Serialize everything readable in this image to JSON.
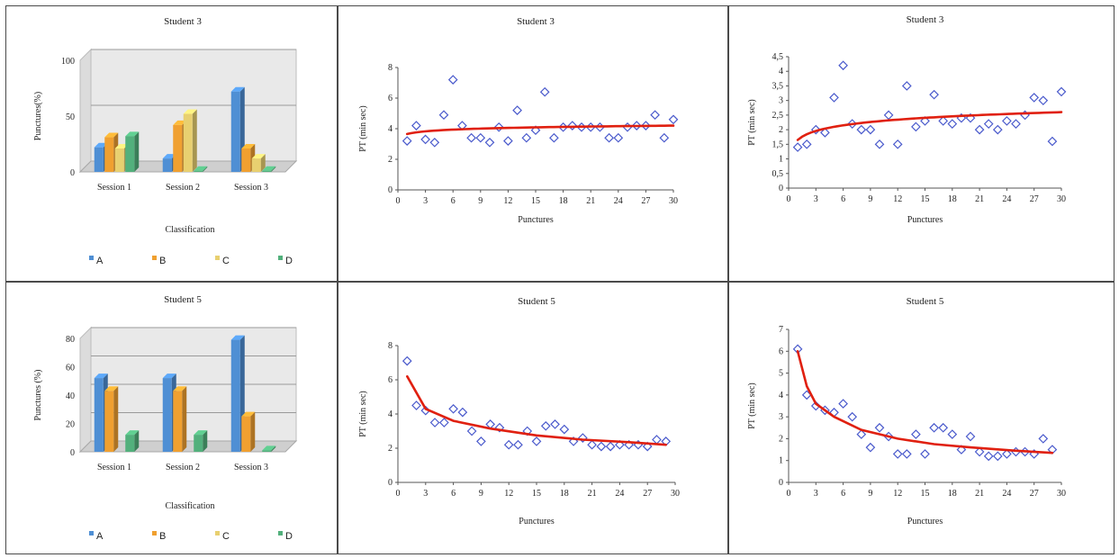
{
  "colors": {
    "A": "#4f8fd4",
    "B": "#f0a030",
    "C": "#e8d070",
    "D": "#52b07c",
    "marker": "#4a5acc",
    "trend": "#e02010"
  },
  "chart_data": [
    {
      "type": "bar",
      "title": "Student 3",
      "categories": [
        "Session 1",
        "Session 2",
        "Session 3"
      ],
      "series": [
        {
          "name": "A",
          "values": [
            22,
            12,
            72
          ]
        },
        {
          "name": "B",
          "values": [
            31,
            42,
            21
          ]
        },
        {
          "name": "C",
          "values": [
            21,
            52,
            12
          ]
        },
        {
          "name": "D",
          "values": [
            32,
            1,
            1
          ]
        }
      ],
      "xlabel": "Classification",
      "ylabel": "Punctures(%)",
      "ylim": [
        0,
        100
      ],
      "yticks": [
        "0",
        "50",
        "100"
      ],
      "legend": "bottom"
    },
    {
      "type": "scatter",
      "title": "Student 3",
      "xlabel": "Punctures",
      "ylabel": "PT (min sec)",
      "xlim": [
        0,
        30
      ],
      "ylim": [
        0,
        8
      ],
      "xticks": [
        "0",
        "3",
        "6",
        "9",
        "12",
        "15",
        "18",
        "21",
        "24",
        "27",
        "30"
      ],
      "yticks": [
        "0",
        "2",
        "4",
        "6",
        "8"
      ],
      "x": [
        1,
        2,
        3,
        4,
        5,
        6,
        7,
        8,
        9,
        10,
        11,
        12,
        13,
        14,
        15,
        16,
        17,
        18,
        19,
        20,
        21,
        22,
        23,
        24,
        25,
        26,
        27,
        28,
        29,
        30
      ],
      "y": [
        3.2,
        4.2,
        3.3,
        3.1,
        4.9,
        7.2,
        4.2,
        3.4,
        3.4,
        3.1,
        4.1,
        3.2,
        5.2,
        3.4,
        3.9,
        6.4,
        3.4,
        4.1,
        4.2,
        4.1,
        4.1,
        4.1,
        3.4,
        3.4,
        4.1,
        4.2,
        4.2,
        4.9,
        3.4,
        4.6
      ],
      "trend": "logarithmic",
      "trend_points": [
        [
          1,
          3.65
        ],
        [
          30,
          4.2
        ]
      ]
    },
    {
      "type": "scatter",
      "title": "Student 3",
      "xlabel": "Punctures",
      "ylabel": "PT (min sec)",
      "xlim": [
        0,
        30
      ],
      "ylim": [
        0,
        4.5
      ],
      "xticks": [
        "0",
        "3",
        "6",
        "9",
        "12",
        "15",
        "18",
        "21",
        "24",
        "27",
        "30"
      ],
      "yticks": [
        "0",
        "0,5",
        "1",
        "1,5",
        "2",
        "2,5",
        "3",
        "3,5",
        "4",
        "4,5"
      ],
      "x": [
        1,
        2,
        3,
        4,
        5,
        6,
        7,
        8,
        9,
        10,
        11,
        12,
        13,
        14,
        15,
        16,
        17,
        18,
        19,
        20,
        21,
        22,
        23,
        24,
        25,
        26,
        27,
        28,
        29,
        30
      ],
      "y": [
        1.4,
        1.5,
        2.0,
        1.9,
        3.1,
        4.2,
        2.2,
        2.0,
        2.0,
        1.5,
        2.5,
        1.5,
        3.5,
        2.1,
        2.3,
        3.2,
        2.3,
        2.2,
        2.4,
        2.4,
        2.0,
        2.2,
        2.0,
        2.3,
        2.2,
        2.5,
        3.1,
        3.0,
        1.6,
        3.3
      ],
      "trend": "logarithmic",
      "trend_points": [
        [
          1,
          1.65
        ],
        [
          30,
          2.6
        ]
      ]
    },
    {
      "type": "bar",
      "title": "Student 5",
      "categories": [
        "Session 1",
        "Session 2",
        "Session 3"
      ],
      "series": [
        {
          "name": "A",
          "values": [
            52,
            52,
            79
          ]
        },
        {
          "name": "B",
          "values": [
            43,
            43,
            25
          ]
        },
        {
          "name": "C",
          "values": [
            0,
            0,
            0
          ]
        },
        {
          "name": "D",
          "values": [
            12,
            12,
            1
          ]
        }
      ],
      "xlabel": "Classification",
      "ylabel": "Punctures (%)",
      "ylim": [
        0,
        80
      ],
      "yticks": [
        "0",
        "20",
        "40",
        "60",
        "80"
      ],
      "legend": "bottom"
    },
    {
      "type": "scatter",
      "title": "Student 5",
      "xlabel": "Punctures",
      "ylabel": "PT (min sec)",
      "xlim": [
        0,
        30
      ],
      "ylim": [
        0,
        8
      ],
      "xticks": [
        "0",
        "3",
        "6",
        "9",
        "12",
        "15",
        "18",
        "21",
        "24",
        "27",
        "30"
      ],
      "yticks": [
        "0",
        "2",
        "4",
        "6",
        "8"
      ],
      "x": [
        1,
        2,
        3,
        4,
        5,
        6,
        7,
        8,
        9,
        10,
        11,
        12,
        13,
        14,
        15,
        16,
        17,
        18,
        19,
        20,
        21,
        22,
        23,
        24,
        25,
        26,
        27,
        28,
        29
      ],
      "y": [
        7.1,
        4.5,
        4.2,
        3.5,
        3.5,
        4.3,
        4.1,
        3.0,
        2.4,
        3.4,
        3.2,
        2.2,
        2.2,
        3.0,
        2.4,
        3.3,
        3.4,
        3.1,
        2.4,
        2.6,
        2.2,
        2.1,
        2.1,
        2.2,
        2.2,
        2.2,
        2.1,
        2.5,
        2.4
      ],
      "trend": "power",
      "trend_points": [
        [
          1,
          6.2
        ],
        [
          3,
          4.3
        ],
        [
          6,
          3.6
        ],
        [
          10,
          3.15
        ],
        [
          15,
          2.75
        ],
        [
          20,
          2.5
        ],
        [
          25,
          2.35
        ],
        [
          29,
          2.2
        ]
      ]
    },
    {
      "type": "scatter",
      "title": "Student 5",
      "xlabel": "Punctures",
      "ylabel": "PT (min sec)",
      "xlim": [
        0,
        30
      ],
      "ylim": [
        0,
        7
      ],
      "xticks": [
        "0",
        "3",
        "6",
        "9",
        "12",
        "15",
        "18",
        "21",
        "24",
        "27",
        "30"
      ],
      "yticks": [
        "0",
        "1",
        "2",
        "3",
        "4",
        "5",
        "6",
        "7"
      ],
      "x": [
        1,
        2,
        3,
        4,
        5,
        6,
        7,
        8,
        9,
        10,
        11,
        12,
        13,
        14,
        15,
        16,
        17,
        18,
        19,
        20,
        21,
        22,
        23,
        24,
        25,
        26,
        27,
        28,
        29
      ],
      "y": [
        6.1,
        4.0,
        3.5,
        3.3,
        3.2,
        3.6,
        3.0,
        2.2,
        1.6,
        2.5,
        2.1,
        1.3,
        1.3,
        2.2,
        1.3,
        2.5,
        2.5,
        2.2,
        1.5,
        2.1,
        1.4,
        1.2,
        1.2,
        1.3,
        1.4,
        1.4,
        1.3,
        2.0,
        1.5
      ],
      "trend": "power",
      "trend_points": [
        [
          1,
          6.0
        ],
        [
          2,
          4.4
        ],
        [
          3,
          3.6
        ],
        [
          5,
          3.0
        ],
        [
          8,
          2.4
        ],
        [
          12,
          2.0
        ],
        [
          16,
          1.75
        ],
        [
          20,
          1.6
        ],
        [
          25,
          1.45
        ],
        [
          29,
          1.35
        ]
      ]
    }
  ]
}
